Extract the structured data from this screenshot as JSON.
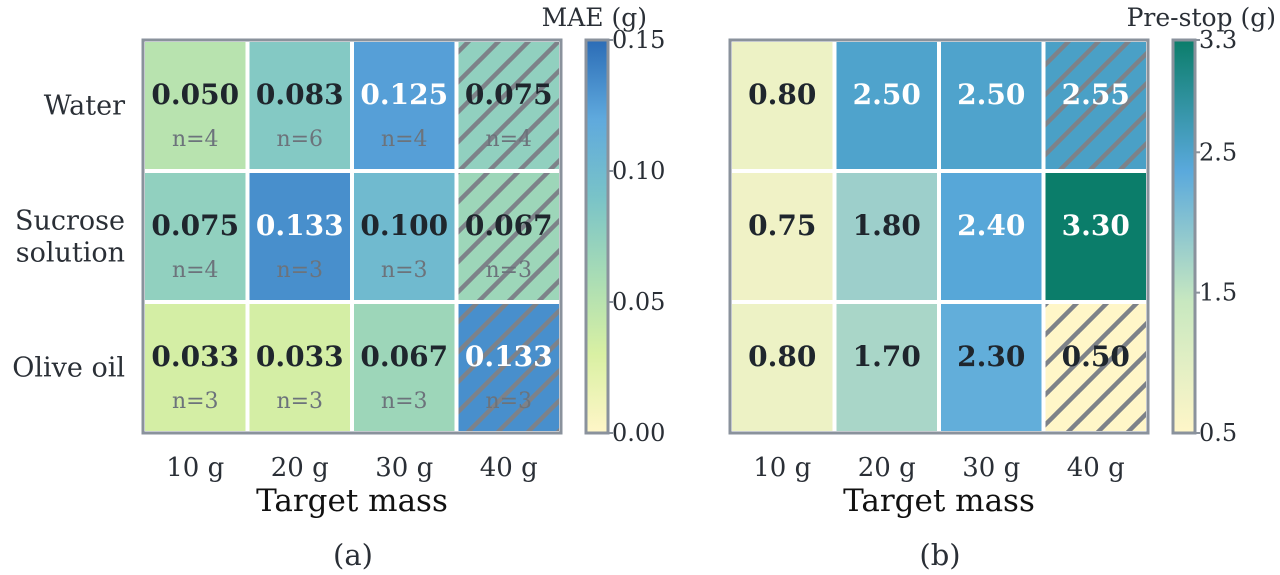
{
  "chart_data": [
    {
      "type": "heatmap",
      "panel_label": "(a)",
      "title": "",
      "xlabel": "Target mass",
      "ylabel": "",
      "x_categories": [
        "10 g",
        "20 g",
        "30 g",
        "40 g"
      ],
      "y_categories": [
        [
          "Water"
        ],
        [
          "Sucrose",
          "solution"
        ],
        [
          "Olive oil"
        ]
      ],
      "values": [
        [
          "0.050",
          "0.083",
          "0.125",
          "0.075"
        ],
        [
          "0.075",
          "0.133",
          "0.100",
          "0.067"
        ],
        [
          "0.033",
          "0.033",
          "0.067",
          "0.133"
        ]
      ],
      "counts": [
        [
          "n=4",
          "n=6",
          "n=4",
          "n=4"
        ],
        [
          "n=4",
          "n=3",
          "n=3",
          "n=3"
        ],
        [
          "n=3",
          "n=3",
          "n=3",
          "n=3"
        ]
      ],
      "hatched": [
        [
          false,
          false,
          false,
          true
        ],
        [
          false,
          false,
          false,
          true
        ],
        [
          false,
          false,
          false,
          true
        ]
      ],
      "colorbar": {
        "label": "MAE (g)",
        "range": [
          0,
          0.15
        ],
        "ticks": [
          "0.00",
          "0.05",
          "0.10",
          "0.15"
        ],
        "stops": [
          "#fff6c8",
          "#d9f0a3",
          "#a8dcb5",
          "#79c3c8",
          "#5fa9dd",
          "#2b6cb6"
        ]
      }
    },
    {
      "type": "heatmap",
      "panel_label": "(b)",
      "title": "",
      "xlabel": "Target mass",
      "ylabel": "",
      "x_categories": [
        "10 g",
        "20 g",
        "30 g",
        "40 g"
      ],
      "y_categories": [
        [
          "Water"
        ],
        [
          "Sucrose",
          "solution"
        ],
        [
          "Olive oil"
        ]
      ],
      "values": [
        [
          "0.80",
          "2.50",
          "2.50",
          "2.55"
        ],
        [
          "0.75",
          "1.80",
          "2.40",
          "3.30"
        ],
        [
          "0.80",
          "1.70",
          "2.30",
          "0.50"
        ]
      ],
      "hatched": [
        [
          false,
          false,
          false,
          true
        ],
        [
          false,
          false,
          false,
          false
        ],
        [
          false,
          false,
          false,
          true
        ]
      ],
      "colorbar": {
        "label": "Pre-stop (g)",
        "range": [
          0.5,
          3.3
        ],
        "ticks": [
          "0.5",
          "1.5",
          "2.5",
          "3.3"
        ],
        "stops": [
          "#fff6c8",
          "#c8e8c0",
          "#5aa9dc",
          "#0b7d6a"
        ]
      }
    }
  ]
}
